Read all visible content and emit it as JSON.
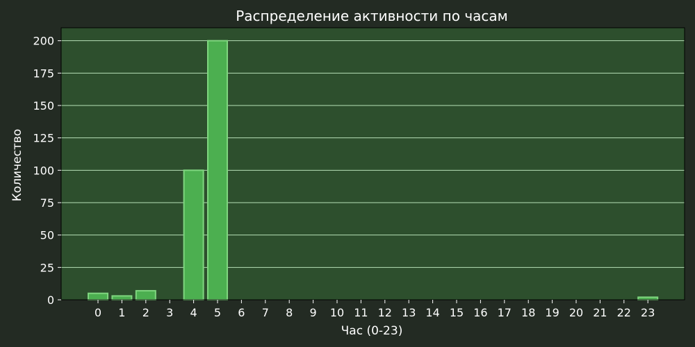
{
  "colors": {
    "figure_background": "#232b23",
    "plot_background": "#2d4f2d",
    "bar_fill": "#4caf50",
    "bar_edge": "#7fd67f",
    "grid": "#b8e0b8",
    "text": "#ffffff"
  },
  "chart_data": {
    "type": "bar",
    "title": "Распределение активности по часам",
    "xlabel": "Час (0-23)",
    "ylabel": "Количество",
    "categories": [
      "0",
      "1",
      "2",
      "3",
      "4",
      "5",
      "6",
      "7",
      "8",
      "9",
      "10",
      "11",
      "12",
      "13",
      "14",
      "15",
      "16",
      "17",
      "18",
      "19",
      "20",
      "21",
      "22",
      "23"
    ],
    "values": [
      5,
      3,
      7,
      0,
      100,
      200,
      0,
      0,
      0,
      0,
      0,
      0,
      0,
      0,
      0,
      0,
      0,
      0,
      0,
      0,
      0,
      0,
      0,
      2
    ],
    "ylim": [
      0,
      210
    ],
    "yticks": [
      0,
      25,
      50,
      75,
      100,
      125,
      150,
      175,
      200
    ],
    "grid": "horizontal",
    "legend": "none"
  }
}
